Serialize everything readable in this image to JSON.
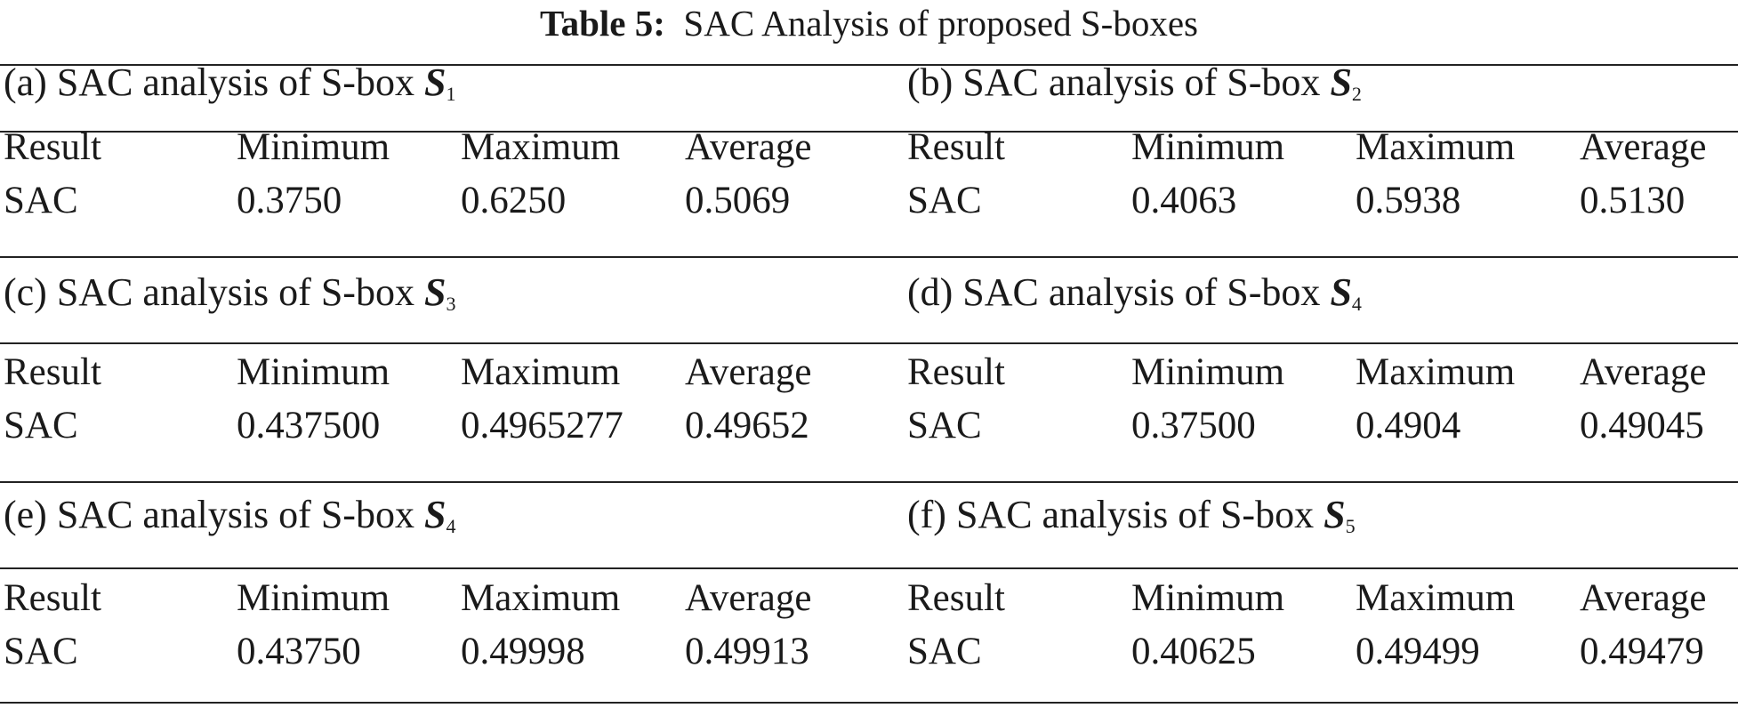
{
  "title": {
    "label": "Table 5:",
    "text": "SAC Analysis of proposed S-boxes"
  },
  "header_labels": [
    "Result",
    "Minimum",
    "Maximum",
    "Average"
  ],
  "subtables": [
    {
      "caption_prefix": "(a) SAC analysis of S-box",
      "sbox_letter": "S",
      "sbox_sub": "1",
      "row": {
        "label": "SAC",
        "minimum": "0.3750",
        "maximum": "0.6250",
        "average": "0.5069"
      }
    },
    {
      "caption_prefix": "(b) SAC analysis of S-box",
      "sbox_letter": "S",
      "sbox_sub": "2",
      "row": {
        "label": "SAC",
        "minimum": "0.4063",
        "maximum": "0.5938",
        "average": "0.5130"
      }
    },
    {
      "caption_prefix": "(c) SAC analysis of S-box",
      "sbox_letter": "S",
      "sbox_sub": "3",
      "row": {
        "label": "SAC",
        "minimum": "0.437500",
        "maximum": "0.4965277",
        "average": "0.49652"
      }
    },
    {
      "caption_prefix": "(d) SAC analysis of S-box",
      "sbox_letter": "S",
      "sbox_sub": "4",
      "row": {
        "label": "SAC",
        "minimum": "0.37500",
        "maximum": "0.4904",
        "average": "0.49045"
      }
    },
    {
      "caption_prefix": "(e) SAC analysis of S-box",
      "sbox_letter": "S",
      "sbox_sub": "4",
      "row": {
        "label": "SAC",
        "minimum": "0.43750",
        "maximum": "0.49998",
        "average": "0.49913"
      }
    },
    {
      "caption_prefix": "(f) SAC analysis of S-box",
      "sbox_letter": "S",
      "sbox_sub": "5",
      "row": {
        "label": "SAC",
        "minimum": "0.40625",
        "maximum": "0.49499",
        "average": "0.49479"
      }
    }
  ]
}
